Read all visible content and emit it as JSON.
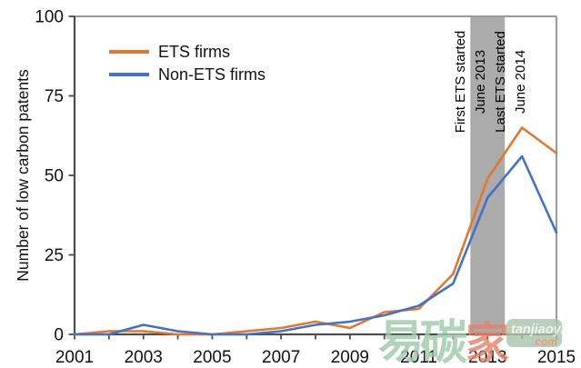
{
  "figure": {
    "y_axis_title": "Number of low carbon patents",
    "annotations": {
      "first_line1": "First ETS started",
      "first_line2": "June 2013",
      "last_line1": "Last ETS started",
      "last_line2": "June 2014"
    }
  },
  "chart_data": {
    "type": "line",
    "title": "",
    "xlabel": "",
    "ylabel": "Number of low carbon patents",
    "x": [
      2001,
      2002,
      2003,
      2004,
      2005,
      2006,
      2007,
      2008,
      2009,
      2010,
      2011,
      2012,
      2013,
      2014,
      2015
    ],
    "series": [
      {
        "name": "ETS firms",
        "color": "#E1782D",
        "values": [
          0,
          1,
          1,
          0,
          0,
          1,
          2,
          4,
          2,
          7,
          8,
          19,
          49,
          65,
          57
        ]
      },
      {
        "name": "Non-ETS firms",
        "color": "#4472C4",
        "values": [
          0,
          0,
          3,
          1,
          0,
          0,
          1,
          3,
          4,
          6,
          9,
          16,
          43,
          56,
          32
        ]
      }
    ],
    "xlim": [
      2001,
      2015
    ],
    "ylim": [
      0,
      100
    ],
    "yticks": [
      0,
      25,
      50,
      75,
      100
    ],
    "xticks_labeled": [
      2001,
      2003,
      2005,
      2007,
      2009,
      2011,
      2013,
      2015
    ],
    "grid": false,
    "legend_position": "upper-left-inside",
    "event_band": {
      "x_start": 2012.5,
      "x_end": 2013.5,
      "color": "#ABABAB"
    }
  },
  "watermark": {
    "chars": [
      "易",
      "碳",
      "家"
    ],
    "site": "tanjiaoyi",
    "domain": ".com",
    "green": "#9ECBA8",
    "salmon": "#E4836A",
    "badge_fill": "#A9C6AD"
  }
}
